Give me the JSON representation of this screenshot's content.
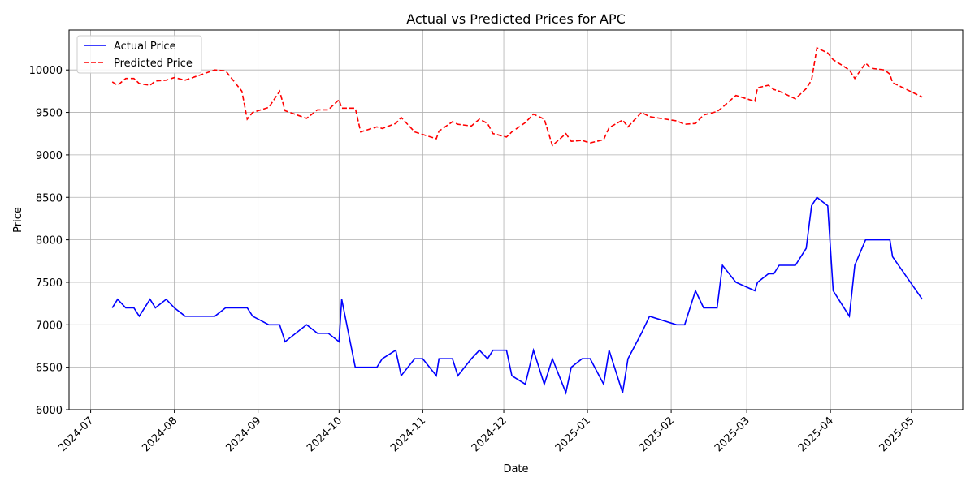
{
  "chart_data": {
    "type": "line",
    "title": "Actual vs Predicted Prices for APC",
    "x_label": "Date",
    "y_label": "Price",
    "x": [
      "2024-07-09",
      "2024-07-11",
      "2024-07-14",
      "2024-07-17",
      "2024-07-19",
      "2024-07-23",
      "2024-07-25",
      "2024-07-29",
      "2024-08-01",
      "2024-08-05",
      "2024-08-16",
      "2024-08-20",
      "2024-08-26",
      "2024-08-28",
      "2024-08-30",
      "2024-09-05",
      "2024-09-09",
      "2024-09-11",
      "2024-09-19",
      "2024-09-23",
      "2024-09-27",
      "2024-10-01",
      "2024-10-02",
      "2024-10-07",
      "2024-10-09",
      "2024-10-15",
      "2024-10-17",
      "2024-10-22",
      "2024-10-24",
      "2024-10-29",
      "2024-11-01",
      "2024-11-06",
      "2024-11-07",
      "2024-11-12",
      "2024-11-14",
      "2024-11-19",
      "2024-11-22",
      "2024-11-25",
      "2024-11-27",
      "2024-12-02",
      "2024-12-04",
      "2024-12-09",
      "2024-12-12",
      "2024-12-16",
      "2024-12-19",
      "2024-12-24",
      "2024-12-26",
      "2024-12-30",
      "2025-01-02",
      "2025-01-07",
      "2025-01-09",
      "2025-01-14",
      "2025-01-16",
      "2025-01-21",
      "2025-01-24",
      "2025-02-03",
      "2025-02-06",
      "2025-02-10",
      "2025-02-13",
      "2025-02-18",
      "2025-02-20",
      "2025-02-25",
      "2025-03-04",
      "2025-03-05",
      "2025-03-09",
      "2025-03-11",
      "2025-03-13",
      "2025-03-19",
      "2025-03-23",
      "2025-03-25",
      "2025-03-27",
      "2025-03-31",
      "2025-04-02",
      "2025-04-08",
      "2025-04-10",
      "2025-04-14",
      "2025-04-16",
      "2025-04-21",
      "2025-04-23",
      "2025-04-24",
      "2025-05-05"
    ],
    "series": [
      {
        "name": "Actual Price",
        "color": "#0000ff",
        "style": "solid",
        "values": [
          7200,
          7300,
          7200,
          7200,
          7100,
          7300,
          7200,
          7300,
          7200,
          7100,
          7100,
          7200,
          7200,
          7200,
          7100,
          7000,
          7000,
          6800,
          7000,
          6900,
          6900,
          6800,
          7300,
          6500,
          6500,
          6500,
          6600,
          6700,
          6400,
          6600,
          6600,
          6400,
          6600,
          6600,
          6400,
          6600,
          6700,
          6600,
          6700,
          6700,
          6400,
          6300,
          6700,
          6300,
          6600,
          6200,
          6500,
          6600,
          6600,
          6300,
          6700,
          6200,
          6600,
          6900,
          7100,
          7000,
          7000,
          7400,
          7200,
          7200,
          7700,
          7500,
          7400,
          7500,
          7600,
          7600,
          7700,
          7700,
          7900,
          8400,
          8500,
          8400,
          7400,
          7100,
          7700,
          8000,
          8000,
          8000,
          8000,
          7800,
          7300
        ]
      },
      {
        "name": "Predicted Price",
        "color": "#ff0000",
        "style": "dashed",
        "values": [
          9860,
          9820,
          9900,
          9900,
          9840,
          9820,
          9870,
          9880,
          9910,
          9880,
          10000,
          9990,
          9750,
          9420,
          9500,
          9560,
          9750,
          9520,
          9430,
          9530,
          9530,
          9650,
          9550,
          9550,
          9270,
          9330,
          9310,
          9370,
          9440,
          9270,
          9240,
          9190,
          9280,
          9390,
          9360,
          9340,
          9420,
          9370,
          9250,
          9210,
          9270,
          9380,
          9480,
          9420,
          9110,
          9250,
          9160,
          9170,
          9140,
          9180,
          9320,
          9410,
          9330,
          9500,
          9450,
          9400,
          9360,
          9370,
          9470,
          9510,
          9560,
          9700,
          9630,
          9790,
          9820,
          9770,
          9750,
          9660,
          9780,
          9880,
          10260,
          10200,
          10120,
          10000,
          9900,
          10080,
          10020,
          10000,
          9950,
          9850,
          9680
        ]
      }
    ],
    "xlim": [
      "2024-06-23",
      "2025-05-20"
    ],
    "xticks": [
      {
        "value": "2024-07-01",
        "label": "2024-07"
      },
      {
        "value": "2024-08-01",
        "label": "2024-08"
      },
      {
        "value": "2024-09-01",
        "label": "2024-09"
      },
      {
        "value": "2024-10-01",
        "label": "2024-10"
      },
      {
        "value": "2024-11-01",
        "label": "2024-11"
      },
      {
        "value": "2024-12-01",
        "label": "2024-12"
      },
      {
        "value": "2025-01-01",
        "label": "2025-01"
      },
      {
        "value": "2025-02-01",
        "label": "2025-02"
      },
      {
        "value": "2025-03-01",
        "label": "2025-03"
      },
      {
        "value": "2025-04-01",
        "label": "2025-04"
      },
      {
        "value": "2025-05-01",
        "label": "2025-05"
      }
    ],
    "ylim": [
      6000,
      10470
    ],
    "yticks": [
      6000,
      6500,
      7000,
      7500,
      8000,
      8500,
      9000,
      9500,
      10000
    ],
    "grid": true,
    "legend": "upper-left"
  }
}
